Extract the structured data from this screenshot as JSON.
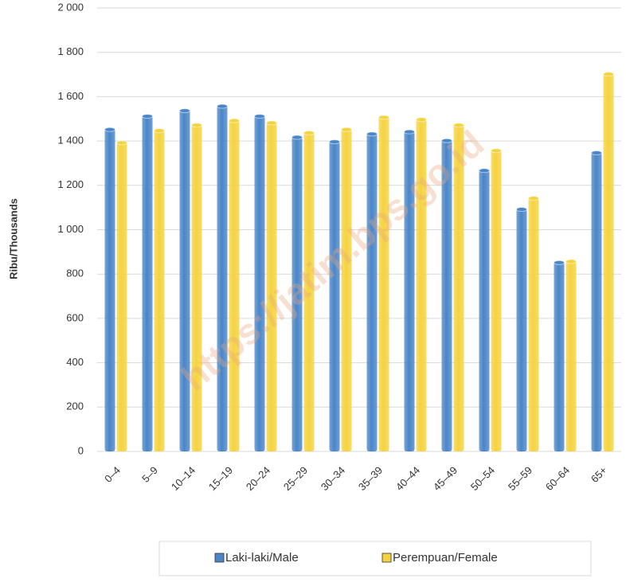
{
  "chart_data": {
    "type": "bar",
    "y_axis_label": "Ribu/Thousands",
    "annotation": "https://jatim.bps.go.id",
    "categories": [
      "0–4",
      "5–9",
      "10–14",
      "15–19",
      "20–24",
      "25–29",
      "30–34",
      "35–39",
      "40–44",
      "45–49",
      "50–54",
      "55–59",
      "60–64",
      "65+"
    ],
    "series": [
      {
        "name": "Laki-laki/Male",
        "color": "#4a86c8",
        "values": [
          1455,
          1515,
          1540,
          1560,
          1515,
          1420,
          1400,
          1435,
          1445,
          1405,
          1270,
          1095,
          855,
          1350
        ]
      },
      {
        "name": "Perempuan/Female",
        "color": "#f5d33f",
        "values": [
          1395,
          1450,
          1475,
          1495,
          1485,
          1440,
          1455,
          1510,
          1500,
          1475,
          1360,
          1145,
          860,
          1705
        ]
      }
    ],
    "ylim": [
      0,
      2000
    ],
    "yticks": [
      0,
      {
        "value": 200,
        "label": "200"
      },
      {
        "value": 400,
        "label": "400"
      },
      {
        "value": 600,
        "label": "600"
      },
      {
        "value": 800,
        "label": "800"
      },
      {
        "value": 1000,
        "label": "1 000"
      },
      {
        "value": 1200,
        "label": "1 200"
      },
      {
        "value": 1400,
        "label": "1 400"
      },
      {
        "value": 1600,
        "label": "1 600"
      },
      {
        "value": 1800,
        "label": "1 800"
      },
      {
        "value": 2000,
        "label": "2 000"
      }
    ],
    "grid": true,
    "legend": "bottom"
  }
}
